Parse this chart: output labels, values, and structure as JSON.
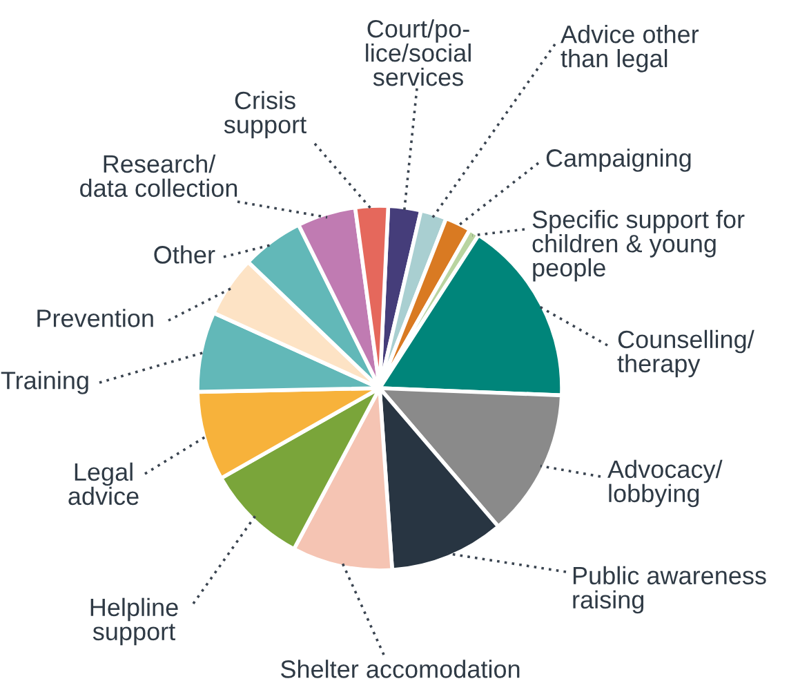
{
  "chart_data": {
    "type": "pie",
    "categories": [
      "Court/po-\nlice/social\nservices",
      "Advice other\nthan legal",
      "Campaigning",
      "Specific support for\nchildren & young\npeople",
      "Counselling/\ntherapy",
      "Advocacy/\nlobbying",
      "Public awareness\nraising",
      "Shelter accomodation",
      "Helpline\nsupport",
      "Legal\nadvice",
      "Training",
      "Prevention",
      "Other",
      "Research/\ndata collection",
      "Crisis\nsupport"
    ],
    "values": [
      2.9,
      2.3,
      2.3,
      0.9,
      16.5,
      13.1,
      10.2,
      8.9,
      9.0,
      7.9,
      7.1,
      5.4,
      5.5,
      5.2,
      2.9
    ],
    "colors": [
      "#453d7a",
      "#a9cfd1",
      "#d97a22",
      "#b9d4a0",
      "#00857a",
      "#8a8a8a",
      "#283542",
      "#f5c4b3",
      "#7aa53a",
      "#f7b23b",
      "#62b8b8",
      "#fde3c5",
      "#62b8b8",
      "#c07bb2",
      "#e5685c"
    ]
  }
}
